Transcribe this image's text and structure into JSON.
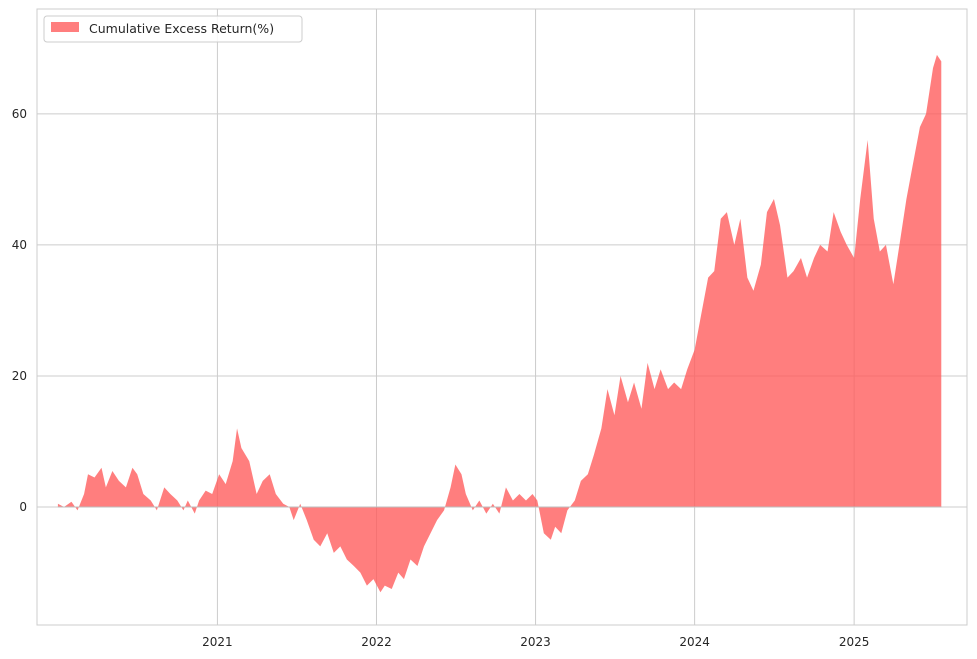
{
  "chart_data": {
    "type": "area",
    "title": "",
    "xlabel": "",
    "ylabel": "",
    "legend": {
      "label": "Cumulative Excess Return(%)",
      "position": "top-left"
    },
    "grid": true,
    "colors": {
      "fill": "#ff5a5a",
      "fill_opacity": 0.78,
      "grid": "#cccccc",
      "axes": "#cccccc",
      "baseline": "#bdbdbd"
    },
    "xlim": [
      "2019-11-14",
      "2025-09-17"
    ],
    "ylim": [
      -18,
      76
    ],
    "xticks": [
      {
        "date": "2021-01-01",
        "label": "2021"
      },
      {
        "date": "2022-01-01",
        "label": "2022"
      },
      {
        "date": "2023-01-01",
        "label": "2023"
      },
      {
        "date": "2024-01-01",
        "label": "2024"
      },
      {
        "date": "2025-01-01",
        "label": "2025"
      }
    ],
    "yticks": [
      {
        "value": 0,
        "label": "0"
      },
      {
        "value": 20,
        "label": "20"
      },
      {
        "value": 40,
        "label": "40"
      },
      {
        "value": 60,
        "label": "60"
      }
    ],
    "series": [
      {
        "name": "Cumulative Excess Return(%)",
        "points": [
          [
            "2020-01-01",
            0.5
          ],
          [
            "2020-01-15",
            0
          ],
          [
            "2020-02-01",
            0.8
          ],
          [
            "2020-02-15",
            -0.5
          ],
          [
            "2020-03-01",
            2
          ],
          [
            "2020-03-10",
            5
          ],
          [
            "2020-03-25",
            4.5
          ],
          [
            "2020-04-10",
            6
          ],
          [
            "2020-04-20",
            3
          ],
          [
            "2020-05-05",
            5.5
          ],
          [
            "2020-05-20",
            4
          ],
          [
            "2020-06-05",
            3
          ],
          [
            "2020-06-20",
            6
          ],
          [
            "2020-07-01",
            5
          ],
          [
            "2020-07-15",
            2
          ],
          [
            "2020-08-01",
            1
          ],
          [
            "2020-08-15",
            -0.5
          ],
          [
            "2020-09-01",
            3
          ],
          [
            "2020-09-15",
            2
          ],
          [
            "2020-10-01",
            1
          ],
          [
            "2020-10-15",
            -0.5
          ],
          [
            "2020-10-25",
            1
          ],
          [
            "2020-11-10",
            -1
          ],
          [
            "2020-11-20",
            1
          ],
          [
            "2020-12-05",
            2.5
          ],
          [
            "2020-12-20",
            2
          ],
          [
            "2021-01-05",
            5
          ],
          [
            "2021-01-20",
            3.5
          ],
          [
            "2021-02-05",
            7
          ],
          [
            "2021-02-15",
            12
          ],
          [
            "2021-02-25",
            9
          ],
          [
            "2021-03-15",
            7
          ],
          [
            "2021-04-01",
            2
          ],
          [
            "2021-04-15",
            4
          ],
          [
            "2021-05-01",
            5
          ],
          [
            "2021-05-15",
            2
          ],
          [
            "2021-06-01",
            0.5
          ],
          [
            "2021-06-15",
            0
          ],
          [
            "2021-06-25",
            -2
          ],
          [
            "2021-07-10",
            0.5
          ],
          [
            "2021-07-25",
            -2
          ],
          [
            "2021-08-10",
            -5
          ],
          [
            "2021-08-25",
            -6
          ],
          [
            "2021-09-10",
            -4
          ],
          [
            "2021-09-25",
            -7
          ],
          [
            "2021-10-10",
            -6
          ],
          [
            "2021-10-25",
            -8
          ],
          [
            "2021-11-10",
            -9
          ],
          [
            "2021-11-25",
            -10
          ],
          [
            "2021-12-10",
            -12
          ],
          [
            "2021-12-25",
            -11
          ],
          [
            "2022-01-10",
            -13
          ],
          [
            "2022-01-20",
            -12
          ],
          [
            "2022-02-05",
            -12.5
          ],
          [
            "2022-02-20",
            -10
          ],
          [
            "2022-03-05",
            -11
          ],
          [
            "2022-03-20",
            -8
          ],
          [
            "2022-04-05",
            -9
          ],
          [
            "2022-04-20",
            -6
          ],
          [
            "2022-05-05",
            -4
          ],
          [
            "2022-05-20",
            -2
          ],
          [
            "2022-06-05",
            -0.5
          ],
          [
            "2022-06-20",
            3
          ],
          [
            "2022-07-01",
            6.5
          ],
          [
            "2022-07-15",
            5
          ],
          [
            "2022-07-25",
            2
          ],
          [
            "2022-08-10",
            -0.5
          ],
          [
            "2022-08-25",
            1
          ],
          [
            "2022-09-10",
            -1
          ],
          [
            "2022-09-25",
            0.5
          ],
          [
            "2022-10-10",
            -1
          ],
          [
            "2022-10-25",
            3
          ],
          [
            "2022-11-10",
            1
          ],
          [
            "2022-11-25",
            2
          ],
          [
            "2022-12-10",
            1
          ],
          [
            "2022-12-25",
            2
          ],
          [
            "2023-01-05",
            1
          ],
          [
            "2023-01-20",
            -4
          ],
          [
            "2023-02-05",
            -5
          ],
          [
            "2023-02-15",
            -3
          ],
          [
            "2023-03-01",
            -4
          ],
          [
            "2023-03-15",
            -0.5
          ],
          [
            "2023-04-01",
            1
          ],
          [
            "2023-04-15",
            4
          ],
          [
            "2023-05-01",
            5
          ],
          [
            "2023-05-15",
            8
          ],
          [
            "2023-06-01",
            12
          ],
          [
            "2023-06-15",
            18
          ],
          [
            "2023-07-01",
            14
          ],
          [
            "2023-07-15",
            20
          ],
          [
            "2023-08-01",
            16
          ],
          [
            "2023-08-15",
            19
          ],
          [
            "2023-09-01",
            15
          ],
          [
            "2023-09-15",
            22
          ],
          [
            "2023-10-01",
            18
          ],
          [
            "2023-10-15",
            21
          ],
          [
            "2023-11-01",
            18
          ],
          [
            "2023-11-15",
            19
          ],
          [
            "2023-12-01",
            18
          ],
          [
            "2023-12-15",
            21
          ],
          [
            "2024-01-01",
            24
          ],
          [
            "2024-01-15",
            29
          ],
          [
            "2024-02-01",
            35
          ],
          [
            "2024-02-15",
            36
          ],
          [
            "2024-03-01",
            44
          ],
          [
            "2024-03-15",
            45
          ],
          [
            "2024-04-01",
            40
          ],
          [
            "2024-04-15",
            44
          ],
          [
            "2024-05-01",
            35
          ],
          [
            "2024-05-15",
            33
          ],
          [
            "2024-06-01",
            37
          ],
          [
            "2024-06-15",
            45
          ],
          [
            "2024-07-01",
            47
          ],
          [
            "2024-07-15",
            43
          ],
          [
            "2024-08-01",
            35
          ],
          [
            "2024-08-15",
            36
          ],
          [
            "2024-09-01",
            38
          ],
          [
            "2024-09-15",
            35
          ],
          [
            "2024-10-01",
            38
          ],
          [
            "2024-10-15",
            40
          ],
          [
            "2024-11-01",
            39
          ],
          [
            "2024-11-15",
            45
          ],
          [
            "2024-12-01",
            42
          ],
          [
            "2024-12-15",
            40
          ],
          [
            "2025-01-01",
            38
          ],
          [
            "2025-01-15",
            47
          ],
          [
            "2025-02-01",
            56
          ],
          [
            "2025-02-15",
            44
          ],
          [
            "2025-03-01",
            39
          ],
          [
            "2025-03-15",
            40
          ],
          [
            "2025-04-01",
            34
          ],
          [
            "2025-04-15",
            40
          ],
          [
            "2025-05-01",
            47
          ],
          [
            "2025-05-15",
            52
          ],
          [
            "2025-06-01",
            58
          ],
          [
            "2025-06-15",
            60
          ],
          [
            "2025-07-01",
            67
          ],
          [
            "2025-07-10",
            69
          ],
          [
            "2025-07-20",
            68
          ]
        ]
      }
    ]
  }
}
